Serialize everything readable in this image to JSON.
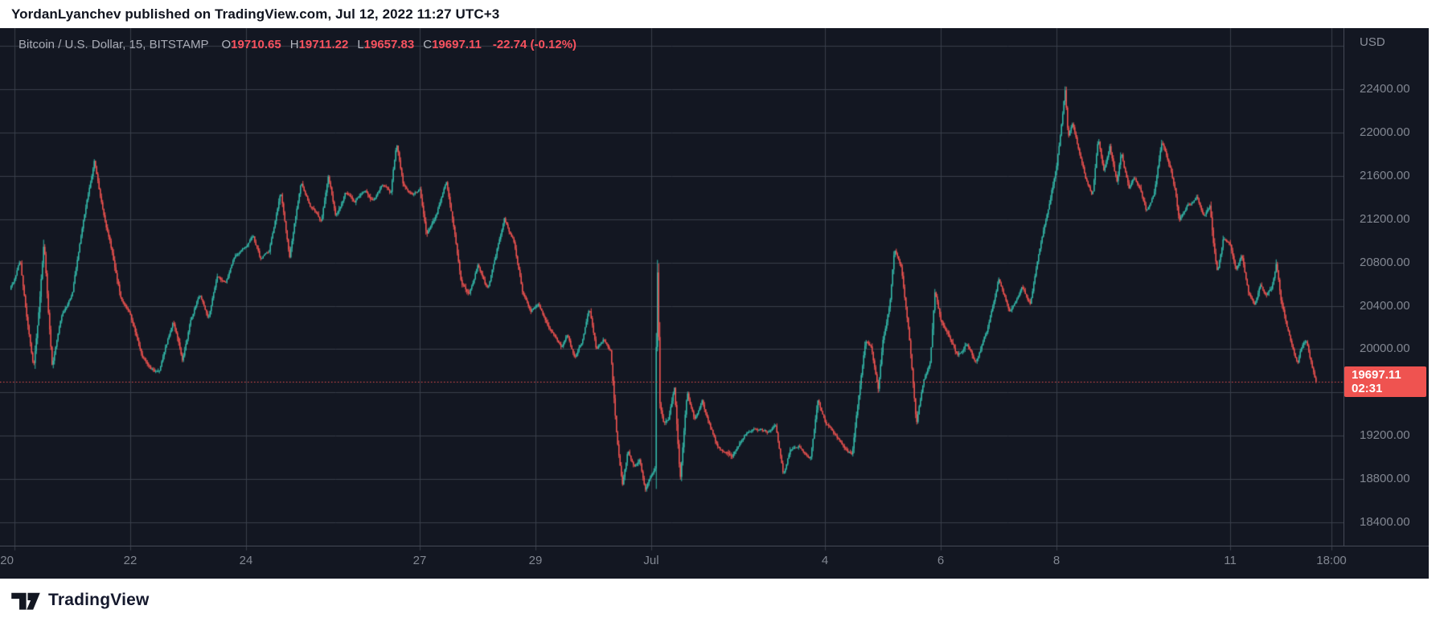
{
  "header": {
    "text": "YordanLyanchev published on TradingView.com, Jul 12, 2022 11:27 UTC+3"
  },
  "chart": {
    "legend": {
      "symbol_title": "Bitcoin / U.S. Dollar, 15, BITSTAMP",
      "items": [
        {
          "k": "O",
          "v": "19710.65"
        },
        {
          "k": "H",
          "v": "19711.22"
        },
        {
          "k": "L",
          "v": "19657.83"
        },
        {
          "k": "C",
          "v": "19697.11"
        }
      ],
      "change": "-22.74 (-0.12%)"
    },
    "price_axis_currency": "USD",
    "last_price_label": {
      "price": "19697.11",
      "countdown": "02:31"
    }
  },
  "footer": {
    "brand": "TradingView"
  },
  "colors": {
    "background": "#131722",
    "grid": "#3a3f4b",
    "border": "#454a57",
    "axis_text": "#828792",
    "up": "#33b8a9",
    "down": "#ef5350",
    "label_bg": "#ef5350",
    "dotted_line": "#ef5350"
  },
  "chart_data": {
    "type": "candlestick",
    "title": "Bitcoin / U.S. Dollar",
    "exchange": "BITSTAMP",
    "interval_minutes": "15",
    "currency": "USD",
    "ohlc": {
      "open": 19710.65,
      "high": 19711.22,
      "low": 19657.83,
      "close": 19697.11,
      "change": -22.74,
      "change_pct": -0.12
    },
    "last_price": 19697.11,
    "countdown": "02:31",
    "x_unit": "days since 2022-06-20 00:00",
    "xlim": [
      -0.25,
      22.958
    ],
    "ylim": [
      18185,
      22964
    ],
    "grid_on": true,
    "x_gridlines_d": [
      0,
      2,
      4,
      7,
      9,
      11,
      14,
      16,
      18,
      21,
      22.75
    ],
    "x_labels": [
      {
        "d": -0.13,
        "t": "20"
      },
      {
        "d": 2,
        "t": "22"
      },
      {
        "d": 4,
        "t": "24"
      },
      {
        "d": 7,
        "t": "27"
      },
      {
        "d": 9,
        "t": "29"
      },
      {
        "d": 11,
        "t": "Jul"
      },
      {
        "d": 14,
        "t": "4"
      },
      {
        "d": 16,
        "t": "6"
      },
      {
        "d": 18,
        "t": "8"
      },
      {
        "d": 21,
        "t": "11"
      },
      {
        "d": 22.75,
        "t": "18:00"
      }
    ],
    "y_gridlines": [
      18400,
      18800,
      19200,
      19600,
      20000,
      20400,
      20800,
      21200,
      21600,
      22000,
      22400,
      22800
    ],
    "y_labels": [
      {
        "p": 22400,
        "t": "22400.00"
      },
      {
        "p": 22000,
        "t": "22000.00"
      },
      {
        "p": 21600,
        "t": "21600.00"
      },
      {
        "p": 21200,
        "t": "21200.00"
      },
      {
        "p": 20800,
        "t": "20800.00"
      },
      {
        "p": 20400,
        "t": "20400.00"
      },
      {
        "p": 20000,
        "t": "20000.00"
      },
      {
        "p": 19600,
        "t": "19600.00"
      },
      {
        "p": 19200,
        "t": "19200.00"
      },
      {
        "p": 18800,
        "t": "18800.00"
      },
      {
        "p": 18400,
        "t": "18400.00"
      }
    ],
    "price_path": [
      [
        -0.08,
        20550
      ],
      [
        0.02,
        20680
      ],
      [
        0.1,
        20820
      ],
      [
        0.2,
        20350
      ],
      [
        0.33,
        19860
      ],
      [
        0.42,
        20380
      ],
      [
        0.51,
        21030
      ],
      [
        0.58,
        20420
      ],
      [
        0.65,
        19880
      ],
      [
        0.8,
        20260
      ],
      [
        1.0,
        20520
      ],
      [
        1.2,
        21220
      ],
      [
        1.38,
        21750
      ],
      [
        1.5,
        21360
      ],
      [
        1.65,
        21010
      ],
      [
        1.83,
        20520
      ],
      [
        2.0,
        20300
      ],
      [
        2.2,
        19920
      ],
      [
        2.35,
        19810
      ],
      [
        2.5,
        19760
      ],
      [
        2.62,
        20010
      ],
      [
        2.74,
        20230
      ],
      [
        2.9,
        19860
      ],
      [
        3.05,
        20260
      ],
      [
        3.2,
        20500
      ],
      [
        3.35,
        20310
      ],
      [
        3.5,
        20700
      ],
      [
        3.65,
        20610
      ],
      [
        3.8,
        20860
      ],
      [
        4.0,
        20950
      ],
      [
        4.12,
        21060
      ],
      [
        4.25,
        20830
      ],
      [
        4.4,
        20910
      ],
      [
        4.6,
        21470
      ],
      [
        4.75,
        20860
      ],
      [
        4.95,
        21560
      ],
      [
        5.1,
        21310
      ],
      [
        5.3,
        21170
      ],
      [
        5.42,
        21600
      ],
      [
        5.55,
        21240
      ],
      [
        5.72,
        21450
      ],
      [
        5.88,
        21330
      ],
      [
        6.05,
        21480
      ],
      [
        6.2,
        21390
      ],
      [
        6.35,
        21510
      ],
      [
        6.5,
        21430
      ],
      [
        6.6,
        21900
      ],
      [
        6.72,
        21490
      ],
      [
        6.88,
        21410
      ],
      [
        7.0,
        21460
      ],
      [
        7.12,
        21030
      ],
      [
        7.28,
        21210
      ],
      [
        7.46,
        21550
      ],
      [
        7.6,
        21110
      ],
      [
        7.72,
        20630
      ],
      [
        7.85,
        20540
      ],
      [
        8.0,
        20800
      ],
      [
        8.18,
        20560
      ],
      [
        8.32,
        20900
      ],
      [
        8.46,
        21200
      ],
      [
        8.62,
        21000
      ],
      [
        8.78,
        20510
      ],
      [
        8.92,
        20340
      ],
      [
        9.05,
        20430
      ],
      [
        9.2,
        20260
      ],
      [
        9.35,
        20110
      ],
      [
        9.45,
        20010
      ],
      [
        9.55,
        20140
      ],
      [
        9.68,
        19900
      ],
      [
        9.8,
        20060
      ],
      [
        9.93,
        20390
      ],
      [
        10.05,
        20010
      ],
      [
        10.18,
        20110
      ],
      [
        10.3,
        19990
      ],
      [
        10.4,
        19210
      ],
      [
        10.5,
        18730
      ],
      [
        10.6,
        19060
      ],
      [
        10.7,
        18890
      ],
      [
        10.8,
        18960
      ],
      [
        10.9,
        18680
      ],
      [
        11.0,
        18830
      ],
      [
        11.07,
        18880
      ],
      [
        11.1,
        20900
      ],
      [
        11.15,
        19450
      ],
      [
        11.22,
        19290
      ],
      [
        11.3,
        19320
      ],
      [
        11.4,
        19640
      ],
      [
        11.5,
        18790
      ],
      [
        11.62,
        19600
      ],
      [
        11.75,
        19340
      ],
      [
        11.88,
        19530
      ],
      [
        12.0,
        19320
      ],
      [
        12.15,
        19090
      ],
      [
        12.4,
        18960
      ],
      [
        12.6,
        19190
      ],
      [
        12.8,
        19270
      ],
      [
        13.0,
        19240
      ],
      [
        13.15,
        19290
      ],
      [
        13.28,
        18830
      ],
      [
        13.4,
        19060
      ],
      [
        13.55,
        19090
      ],
      [
        13.75,
        18980
      ],
      [
        13.88,
        19560
      ],
      [
        14.0,
        19340
      ],
      [
        14.15,
        19240
      ],
      [
        14.33,
        19100
      ],
      [
        14.47,
        19040
      ],
      [
        14.56,
        19480
      ],
      [
        14.7,
        20090
      ],
      [
        14.8,
        20020
      ],
      [
        14.92,
        19610
      ],
      [
        15.0,
        20040
      ],
      [
        15.12,
        20400
      ],
      [
        15.2,
        20920
      ],
      [
        15.32,
        20750
      ],
      [
        15.45,
        20160
      ],
      [
        15.58,
        19310
      ],
      [
        15.7,
        19700
      ],
      [
        15.82,
        19890
      ],
      [
        15.9,
        20560
      ],
      [
        16.0,
        20290
      ],
      [
        16.15,
        20150
      ],
      [
        16.3,
        19970
      ],
      [
        16.45,
        20090
      ],
      [
        16.6,
        19890
      ],
      [
        16.8,
        20170
      ],
      [
        17.0,
        20650
      ],
      [
        17.2,
        20340
      ],
      [
        17.4,
        20560
      ],
      [
        17.55,
        20400
      ],
      [
        17.68,
        20860
      ],
      [
        17.8,
        21190
      ],
      [
        17.9,
        21430
      ],
      [
        18.0,
        21700
      ],
      [
        18.08,
        22060
      ],
      [
        18.15,
        22400
      ],
      [
        18.2,
        21960
      ],
      [
        18.28,
        22090
      ],
      [
        18.38,
        21850
      ],
      [
        18.5,
        21570
      ],
      [
        18.62,
        21400
      ],
      [
        18.72,
        21930
      ],
      [
        18.82,
        21660
      ],
      [
        18.92,
        21880
      ],
      [
        19.05,
        21530
      ],
      [
        19.12,
        21810
      ],
      [
        19.25,
        21480
      ],
      [
        19.35,
        21570
      ],
      [
        19.45,
        21450
      ],
      [
        19.55,
        21270
      ],
      [
        19.68,
        21430
      ],
      [
        19.82,
        21940
      ],
      [
        19.95,
        21720
      ],
      [
        20.05,
        21490
      ],
      [
        20.12,
        21180
      ],
      [
        20.25,
        21320
      ],
      [
        20.42,
        21390
      ],
      [
        20.55,
        21220
      ],
      [
        20.65,
        21300
      ],
      [
        20.72,
        20890
      ],
      [
        20.78,
        20680
      ],
      [
        20.88,
        21000
      ],
      [
        21.0,
        20940
      ],
      [
        21.1,
        20720
      ],
      [
        21.2,
        20850
      ],
      [
        21.32,
        20520
      ],
      [
        21.42,
        20400
      ],
      [
        21.52,
        20570
      ],
      [
        21.62,
        20470
      ],
      [
        21.72,
        20530
      ],
      [
        21.8,
        20770
      ],
      [
        21.88,
        20430
      ],
      [
        22.0,
        20170
      ],
      [
        22.1,
        19970
      ],
      [
        22.16,
        19860
      ],
      [
        22.24,
        20010
      ],
      [
        22.32,
        20060
      ],
      [
        22.4,
        19880
      ],
      [
        22.46,
        19740
      ],
      [
        22.5,
        19697.11
      ]
    ]
  }
}
